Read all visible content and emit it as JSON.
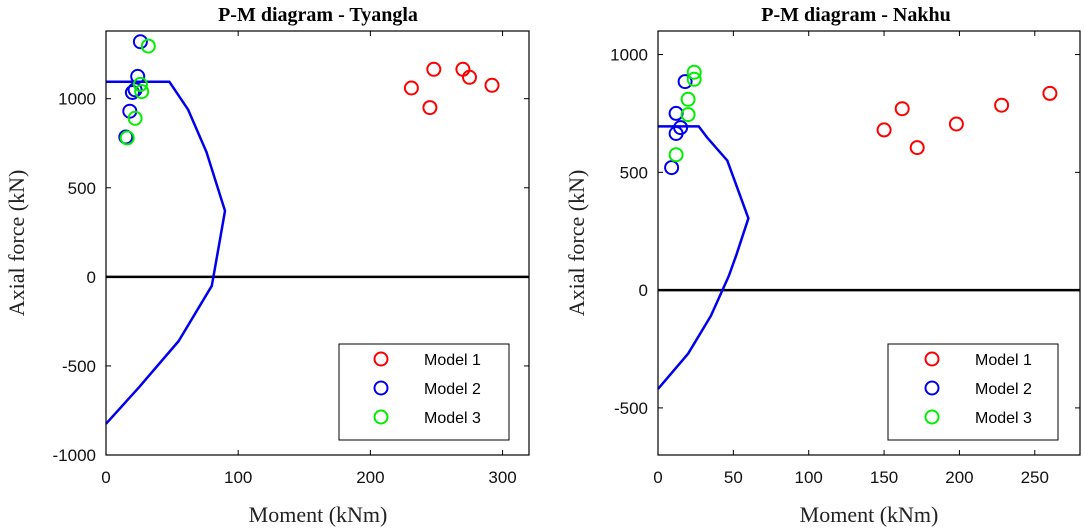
{
  "chart_data": [
    {
      "type": "scatter",
      "title": "P-M diagram - Tyangla",
      "xlabel": "Moment (kNm)",
      "ylabel": "Axial force (kN)",
      "xlim": [
        0,
        320
      ],
      "ylim": [
        -1000,
        1380
      ],
      "xticks": [
        "0",
        "100",
        "200",
        "300"
      ],
      "xtick_values": [
        0,
        100,
        200,
        300
      ],
      "yticks": [
        "-1000",
        "-500",
        "0",
        "500",
        "1000"
      ],
      "ytick_values": [
        -1000,
        -500,
        0,
        500,
        1000
      ],
      "legend_position": "bottom-right",
      "envelope": {
        "color": "#0000ee",
        "points": [
          [
            0,
            -825
          ],
          [
            25,
            -620
          ],
          [
            55,
            -360
          ],
          [
            80,
            -50
          ],
          [
            86,
            200
          ],
          [
            90,
            370
          ],
          [
            76,
            700
          ],
          [
            62,
            940
          ],
          [
            48,
            1095
          ],
          [
            0,
            1095
          ]
        ]
      },
      "zero_line": true,
      "series": [
        {
          "name": "Model 1",
          "color": "#ff0000",
          "points": [
            [
              231,
              1060
            ],
            [
              248,
              1165
            ],
            [
              245,
              950
            ],
            [
              270,
              1165
            ],
            [
              275,
              1120
            ],
            [
              292,
              1075
            ]
          ]
        },
        {
          "name": "Model 2",
          "color": "#0000ee",
          "points": [
            [
              26,
              1320
            ],
            [
              24,
              1125
            ],
            [
              22,
              1050
            ],
            [
              20,
              1035
            ],
            [
              18,
              930
            ],
            [
              15,
              785
            ]
          ]
        },
        {
          "name": "Model 3",
          "color": "#00ee00",
          "points": [
            [
              32,
              1295
            ],
            [
              26,
              1080
            ],
            [
              27,
              1040
            ],
            [
              22,
              890
            ],
            [
              16,
              780
            ]
          ]
        }
      ]
    },
    {
      "type": "scatter",
      "title": "P-M diagram - Nakhu",
      "xlabel": "Moment (kNm)",
      "ylabel": "Axial force (kN)",
      "xlim": [
        0,
        280
      ],
      "ylim": [
        -700,
        1100
      ],
      "xticks": [
        "0",
        "50",
        "100",
        "150",
        "200",
        "250"
      ],
      "xtick_values": [
        0,
        50,
        100,
        150,
        200,
        250
      ],
      "yticks": [
        "-500",
        "0",
        "500",
        "1000"
      ],
      "ytick_values": [
        -500,
        0,
        500,
        1000
      ],
      "legend_position": "bottom-right",
      "envelope": {
        "color": "#0000ee",
        "points": [
          [
            0,
            -420
          ],
          [
            20,
            -270
          ],
          [
            35,
            -110
          ],
          [
            47,
            60
          ],
          [
            52,
            150
          ],
          [
            60,
            305
          ],
          [
            46,
            550
          ],
          [
            33,
            645
          ],
          [
            27,
            695
          ],
          [
            0,
            695
          ]
        ]
      },
      "zero_line": true,
      "series": [
        {
          "name": "Model 1",
          "color": "#ff0000",
          "points": [
            [
              150,
              680
            ],
            [
              162,
              770
            ],
            [
              172,
              605
            ],
            [
              198,
              705
            ],
            [
              228,
              785
            ],
            [
              260,
              835
            ]
          ]
        },
        {
          "name": "Model 2",
          "color": "#0000ee",
          "points": [
            [
              18,
              885
            ],
            [
              12,
              750
            ],
            [
              12,
              665
            ],
            [
              15,
              690
            ],
            [
              9,
              520
            ]
          ]
        },
        {
          "name": "Model 3",
          "color": "#00ee00",
          "points": [
            [
              24,
              925
            ],
            [
              24,
              895
            ],
            [
              20,
              810
            ],
            [
              20,
              745
            ],
            [
              12,
              575
            ]
          ]
        }
      ]
    }
  ]
}
